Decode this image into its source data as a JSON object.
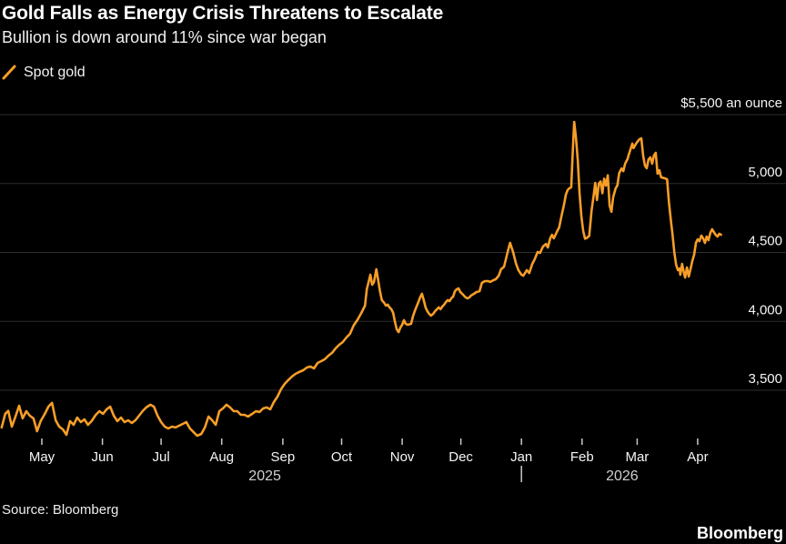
{
  "header": {
    "title": "Gold Falls as Energy Crisis Threatens to Escalate",
    "subtitle": "Bullion is down around 11% since war began"
  },
  "legend": {
    "items": [
      {
        "label": "Spot gold",
        "color": "#F79E28"
      }
    ]
  },
  "footer": {
    "source": "Source: Bloomberg",
    "brand": "Bloomberg"
  },
  "chart_data": {
    "type": "line",
    "title": "Gold Falls as Energy Crisis Threatens to Escalate",
    "subtitle": "Bullion is down around 11% since war began",
    "unit": "$ an ounce",
    "grid": "horizontal-only",
    "legend_position": "top-left",
    "time_note": "t = months since 2025-05-01 (0 = May 1 2025, 8 = Jan 1 2026)",
    "x_axis": {
      "months": [
        {
          "label": "May",
          "t": 0
        },
        {
          "label": "Jun",
          "t": 1.01
        },
        {
          "label": "Jul",
          "t": 1.99
        },
        {
          "label": "Aug",
          "t": 3.0
        },
        {
          "label": "Sep",
          "t": 4.02
        },
        {
          "label": "Oct",
          "t": 5.0
        },
        {
          "label": "Nov",
          "t": 6.01
        },
        {
          "label": "Dec",
          "t": 6.99
        },
        {
          "label": "Jan",
          "t": 8.0
        },
        {
          "label": "Feb",
          "t": 9.01
        },
        {
          "label": "Mar",
          "t": 9.93
        },
        {
          "label": "Apr",
          "t": 10.94
        }
      ],
      "years": [
        {
          "label": "2025",
          "t_center": 3.72
        },
        {
          "label": "2026",
          "t_center": 9.68,
          "divider_t": 8.0
        }
      ]
    },
    "y_axis": {
      "ticks": [
        {
          "value": 5500,
          "label": "$5,500 an ounce"
        },
        {
          "value": 5000,
          "label": "5,000"
        },
        {
          "value": 4500,
          "label": "4,500"
        },
        {
          "value": 4000,
          "label": "4,000"
        },
        {
          "value": 3500,
          "label": "3,500"
        }
      ],
      "range": [
        3100,
        5550
      ]
    },
    "series": [
      {
        "name": "Spot gold",
        "color": "#F79E28",
        "points": [
          [
            -0.67,
            3230
          ],
          [
            -0.61,
            3330
          ],
          [
            -0.56,
            3350
          ],
          [
            -0.5,
            3236
          ],
          [
            -0.44,
            3309
          ],
          [
            -0.38,
            3388
          ],
          [
            -0.32,
            3296
          ],
          [
            -0.26,
            3348
          ],
          [
            -0.2,
            3315
          ],
          [
            -0.14,
            3296
          ],
          [
            -0.08,
            3203
          ],
          [
            -0.02,
            3276
          ],
          [
            0.05,
            3329
          ],
          [
            0.11,
            3381
          ],
          [
            0.17,
            3408
          ],
          [
            0.23,
            3282
          ],
          [
            0.29,
            3236
          ],
          [
            0.35,
            3216
          ],
          [
            0.41,
            3177
          ],
          [
            0.47,
            3276
          ],
          [
            0.53,
            3249
          ],
          [
            0.59,
            3302
          ],
          [
            0.65,
            3269
          ],
          [
            0.71,
            3289
          ],
          [
            0.77,
            3249
          ],
          [
            0.83,
            3276
          ],
          [
            0.9,
            3322
          ],
          [
            0.96,
            3348
          ],
          [
            1.02,
            3329
          ],
          [
            1.08,
            3362
          ],
          [
            1.14,
            3381
          ],
          [
            1.2,
            3315
          ],
          [
            1.26,
            3276
          ],
          [
            1.32,
            3302
          ],
          [
            1.38,
            3269
          ],
          [
            1.44,
            3282
          ],
          [
            1.5,
            3263
          ],
          [
            1.56,
            3282
          ],
          [
            1.62,
            3315
          ],
          [
            1.68,
            3348
          ],
          [
            1.74,
            3375
          ],
          [
            1.81,
            3395
          ],
          [
            1.87,
            3381
          ],
          [
            1.93,
            3315
          ],
          [
            1.99,
            3269
          ],
          [
            2.05,
            3236
          ],
          [
            2.11,
            3223
          ],
          [
            2.17,
            3236
          ],
          [
            2.23,
            3230
          ],
          [
            2.29,
            3243
          ],
          [
            2.35,
            3256
          ],
          [
            2.41,
            3269
          ],
          [
            2.47,
            3223
          ],
          [
            2.53,
            3197
          ],
          [
            2.59,
            3170
          ],
          [
            2.66,
            3183
          ],
          [
            2.72,
            3230
          ],
          [
            2.78,
            3309
          ],
          [
            2.84,
            3282
          ],
          [
            2.9,
            3249
          ],
          [
            2.96,
            3348
          ],
          [
            3.02,
            3368
          ],
          [
            3.08,
            3395
          ],
          [
            3.14,
            3375
          ],
          [
            3.2,
            3348
          ],
          [
            3.26,
            3348
          ],
          [
            3.32,
            3322
          ],
          [
            3.38,
            3322
          ],
          [
            3.44,
            3309
          ],
          [
            3.51,
            3329
          ],
          [
            3.57,
            3348
          ],
          [
            3.63,
            3342
          ],
          [
            3.69,
            3368
          ],
          [
            3.75,
            3375
          ],
          [
            3.81,
            3362
          ],
          [
            3.87,
            3414
          ],
          [
            3.93,
            3454
          ],
          [
            3.99,
            3507
          ],
          [
            4.05,
            3546
          ],
          [
            4.11,
            3573
          ],
          [
            4.17,
            3599
          ],
          [
            4.23,
            3619
          ],
          [
            4.29,
            3632
          ],
          [
            4.36,
            3645
          ],
          [
            4.42,
            3665
          ],
          [
            4.48,
            3672
          ],
          [
            4.54,
            3659
          ],
          [
            4.6,
            3698
          ],
          [
            4.66,
            3711
          ],
          [
            4.72,
            3725
          ],
          [
            4.78,
            3751
          ],
          [
            4.84,
            3771
          ],
          [
            4.9,
            3804
          ],
          [
            4.96,
            3830
          ],
          [
            5.02,
            3850
          ],
          [
            5.08,
            3883
          ],
          [
            5.14,
            3909
          ],
          [
            5.2,
            3969
          ],
          [
            5.27,
            4015
          ],
          [
            5.33,
            4061
          ],
          [
            5.39,
            4114
          ],
          [
            5.42,
            4233
          ],
          [
            5.45,
            4286
          ],
          [
            5.48,
            4338
          ],
          [
            5.51,
            4266
          ],
          [
            5.54,
            4286
          ],
          [
            5.58,
            4378
          ],
          [
            5.61,
            4298
          ],
          [
            5.64,
            4219
          ],
          [
            5.67,
            4154
          ],
          [
            5.71,
            4134
          ],
          [
            5.74,
            4114
          ],
          [
            5.77,
            4121
          ],
          [
            5.8,
            4101
          ],
          [
            5.83,
            4088
          ],
          [
            5.86,
            4061
          ],
          [
            5.89,
            3995
          ],
          [
            5.92,
            3942
          ],
          [
            5.95,
            3922
          ],
          [
            5.98,
            3955
          ],
          [
            6.01,
            3975
          ],
          [
            6.04,
            4008
          ],
          [
            6.07,
            3982
          ],
          [
            6.1,
            3975
          ],
          [
            6.16,
            3982
          ],
          [
            6.19,
            4035
          ],
          [
            6.22,
            4074
          ],
          [
            6.25,
            4107
          ],
          [
            6.28,
            4140
          ],
          [
            6.31,
            4173
          ],
          [
            6.34,
            4200
          ],
          [
            6.37,
            4154
          ],
          [
            6.4,
            4101
          ],
          [
            6.43,
            4074
          ],
          [
            6.46,
            4055
          ],
          [
            6.49,
            4041
          ],
          [
            6.53,
            4055
          ],
          [
            6.56,
            4074
          ],
          [
            6.59,
            4088
          ],
          [
            6.62,
            4101
          ],
          [
            6.65,
            4088
          ],
          [
            6.68,
            4107
          ],
          [
            6.71,
            4121
          ],
          [
            6.74,
            4140
          ],
          [
            6.77,
            4154
          ],
          [
            6.8,
            4147
          ],
          [
            6.83,
            4167
          ],
          [
            6.86,
            4180
          ],
          [
            6.89,
            4219
          ],
          [
            6.92,
            4233
          ],
          [
            6.95,
            4239
          ],
          [
            6.98,
            4213
          ],
          [
            7.01,
            4200
          ],
          [
            7.04,
            4187
          ],
          [
            7.07,
            4173
          ],
          [
            7.1,
            4167
          ],
          [
            7.13,
            4173
          ],
          [
            7.16,
            4187
          ],
          [
            7.21,
            4200
          ],
          [
            7.25,
            4213
          ],
          [
            7.3,
            4219
          ],
          [
            7.34,
            4279
          ],
          [
            7.39,
            4292
          ],
          [
            7.44,
            4292
          ],
          [
            7.48,
            4286
          ],
          [
            7.53,
            4298
          ],
          [
            7.57,
            4305
          ],
          [
            7.62,
            4331
          ],
          [
            7.66,
            4378
          ],
          [
            7.71,
            4397
          ],
          [
            7.77,
            4503
          ],
          [
            7.81,
            4569
          ],
          [
            7.86,
            4503
          ],
          [
            7.91,
            4417
          ],
          [
            7.95,
            4371
          ],
          [
            8.0,
            4338
          ],
          [
            8.03,
            4331
          ],
          [
            8.09,
            4371
          ],
          [
            8.13,
            4351
          ],
          [
            8.18,
            4417
          ],
          [
            8.22,
            4450
          ],
          [
            8.27,
            4503
          ],
          [
            8.31,
            4496
          ],
          [
            8.36,
            4543
          ],
          [
            8.41,
            4562
          ],
          [
            8.44,
            4536
          ],
          [
            8.48,
            4602
          ],
          [
            8.51,
            4628
          ],
          [
            8.54,
            4602
          ],
          [
            8.59,
            4649
          ],
          [
            8.63,
            4682
          ],
          [
            8.66,
            4748
          ],
          [
            8.71,
            4847
          ],
          [
            8.74,
            4919
          ],
          [
            8.77,
            4952
          ],
          [
            8.8,
            4966
          ],
          [
            8.83,
            4972
          ],
          [
            8.86,
            5276
          ],
          [
            8.88,
            5447
          ],
          [
            8.91,
            5328
          ],
          [
            8.94,
            5170
          ],
          [
            8.97,
            4926
          ],
          [
            9.0,
            4761
          ],
          [
            9.03,
            4655
          ],
          [
            9.06,
            4600
          ],
          [
            9.09,
            4605
          ],
          [
            9.13,
            4620
          ],
          [
            9.17,
            4805
          ],
          [
            9.21,
            4930
          ],
          [
            9.23,
            5005
          ],
          [
            9.26,
            4880
          ],
          [
            9.29,
            5000
          ],
          [
            9.32,
            5015
          ],
          [
            9.35,
            4930
          ],
          [
            9.38,
            5035
          ],
          [
            9.41,
            4985
          ],
          [
            9.44,
            5060
          ],
          [
            9.47,
            4840
          ],
          [
            9.5,
            4795
          ],
          [
            9.53,
            4900
          ],
          [
            9.57,
            4965
          ],
          [
            9.6,
            4985
          ],
          [
            9.63,
            5075
          ],
          [
            9.67,
            5110
          ],
          [
            9.7,
            5090
          ],
          [
            9.73,
            5145
          ],
          [
            9.77,
            5177
          ],
          [
            9.79,
            5210
          ],
          [
            9.85,
            5290
          ],
          [
            9.87,
            5257
          ],
          [
            9.92,
            5295
          ],
          [
            9.97,
            5322
          ],
          [
            10.0,
            5328
          ],
          [
            10.03,
            5200
          ],
          [
            10.06,
            5130
          ],
          [
            10.09,
            5111
          ],
          [
            10.12,
            5175
          ],
          [
            10.15,
            5190
          ],
          [
            10.18,
            5144
          ],
          [
            10.21,
            5203
          ],
          [
            10.24,
            5223
          ],
          [
            10.27,
            5071
          ],
          [
            10.3,
            5097
          ],
          [
            10.33,
            5045
          ],
          [
            10.39,
            5038
          ],
          [
            10.43,
            5031
          ],
          [
            10.46,
            4866
          ],
          [
            10.49,
            4741
          ],
          [
            10.52,
            4628
          ],
          [
            10.55,
            4503
          ],
          [
            10.58,
            4411
          ],
          [
            10.61,
            4371
          ],
          [
            10.64,
            4384
          ],
          [
            10.65,
            4338
          ],
          [
            10.68,
            4417
          ],
          [
            10.71,
            4351
          ],
          [
            10.73,
            4318
          ],
          [
            10.76,
            4391
          ],
          [
            10.79,
            4325
          ],
          [
            10.82,
            4378
          ],
          [
            10.85,
            4437
          ],
          [
            10.88,
            4483
          ],
          [
            10.91,
            4569
          ],
          [
            10.94,
            4595
          ],
          [
            10.97,
            4582
          ],
          [
            11.0,
            4622
          ],
          [
            11.03,
            4602
          ],
          [
            11.06,
            4569
          ],
          [
            11.09,
            4615
          ],
          [
            11.12,
            4589
          ],
          [
            11.15,
            4641
          ],
          [
            11.18,
            4668
          ],
          [
            11.21,
            4648
          ],
          [
            11.24,
            4628
          ],
          [
            11.27,
            4615
          ],
          [
            11.3,
            4635
          ],
          [
            11.33,
            4628
          ]
        ]
      }
    ]
  }
}
